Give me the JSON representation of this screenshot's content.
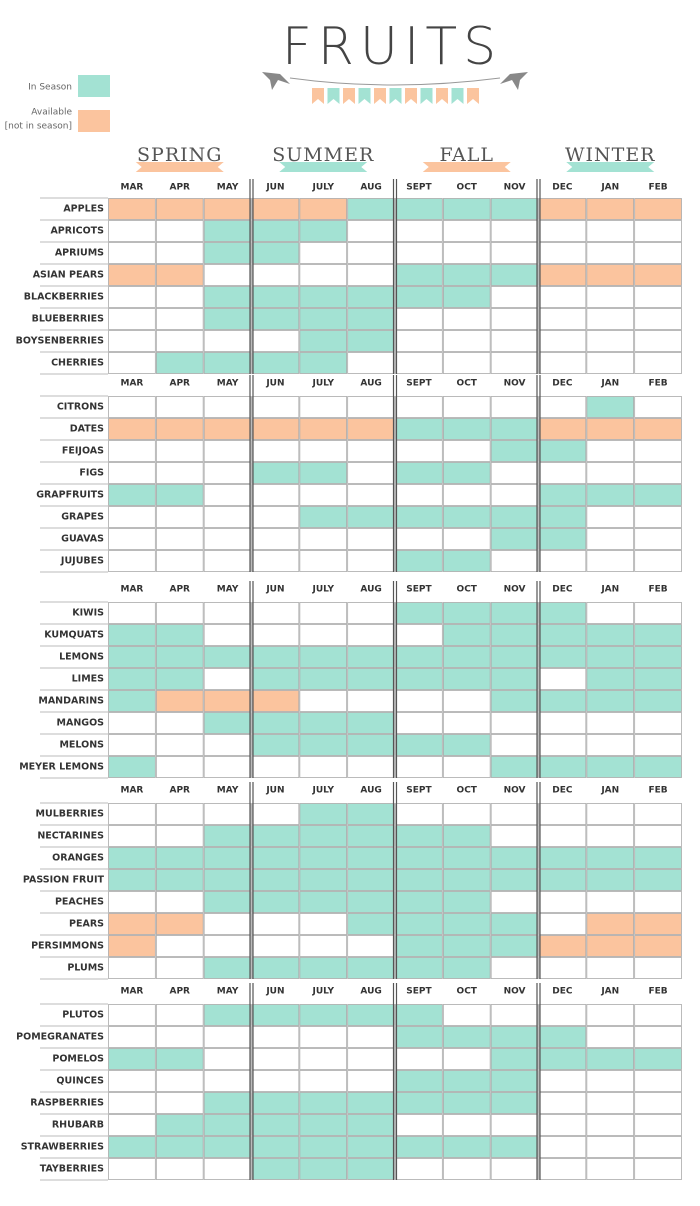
{
  "title": "FRUITS",
  "legend": {
    "in_season": "In Season",
    "available": "Available",
    "available_note": "[not in season]"
  },
  "seasons": [
    "SPRING",
    "SUMMER",
    "FALL",
    "WINTER"
  ],
  "months": [
    "MAR",
    "APR",
    "MAY",
    "JUN",
    "JULY",
    "AUG",
    "SEPT",
    "OCT",
    "NOV",
    "DEC",
    "JAN",
    "FEB"
  ],
  "groups": [
    {
      "fruits": [
        {
          "name": "APPLES",
          "in_season": [
            "AUG",
            "SEPT",
            "OCT",
            "NOV"
          ],
          "available": [
            "MAR",
            "APR",
            "MAY",
            "JUN",
            "JULY",
            "DEC",
            "JAN",
            "FEB"
          ]
        },
        {
          "name": "APRICOTS",
          "in_season": [
            "MAY",
            "JUN",
            "JULY"
          ],
          "available": []
        },
        {
          "name": "APRIUMS",
          "in_season": [
            "MAY",
            "JUN"
          ],
          "available": []
        },
        {
          "name": "ASIAN PEARS",
          "in_season": [
            "SEPT",
            "OCT",
            "NOV"
          ],
          "available": [
            "MAR",
            "APR",
            "DEC",
            "JAN",
            "FEB"
          ]
        },
        {
          "name": "BLACKBERRIES",
          "in_season": [
            "MAY",
            "JUN",
            "JULY",
            "AUG",
            "SEPT",
            "OCT"
          ],
          "available": []
        },
        {
          "name": "BLUEBERRIES",
          "in_season": [
            "MAY",
            "JUN",
            "JULY",
            "AUG"
          ],
          "available": []
        },
        {
          "name": "BOYSENBERRIES",
          "in_season": [
            "JULY",
            "AUG"
          ],
          "available": []
        },
        {
          "name": "CHERRIES",
          "in_season": [
            "APR",
            "MAY",
            "JUN",
            "JULY"
          ],
          "available": []
        }
      ]
    },
    {
      "fruits": [
        {
          "name": "CITRONS",
          "in_season": [
            "JAN"
          ],
          "available": []
        },
        {
          "name": "DATES",
          "in_season": [
            "SEPT",
            "OCT",
            "NOV"
          ],
          "available": [
            "MAR",
            "APR",
            "MAY",
            "JUN",
            "JULY",
            "AUG",
            "DEC",
            "JAN",
            "FEB"
          ]
        },
        {
          "name": "FEIJOAS",
          "in_season": [
            "NOV",
            "DEC"
          ],
          "available": []
        },
        {
          "name": "FIGS",
          "in_season": [
            "JUN",
            "JULY",
            "SEPT",
            "OCT"
          ],
          "available": []
        },
        {
          "name": "GRAPFRUITS",
          "in_season": [
            "MAR",
            "APR",
            "DEC",
            "JAN",
            "FEB"
          ],
          "available": []
        },
        {
          "name": "GRAPES",
          "in_season": [
            "JULY",
            "AUG",
            "SEPT",
            "OCT",
            "NOV",
            "DEC"
          ],
          "available": []
        },
        {
          "name": "GUAVAS",
          "in_season": [
            "NOV",
            "DEC"
          ],
          "available": []
        },
        {
          "name": "JUJUBES",
          "in_season": [
            "SEPT",
            "OCT"
          ],
          "available": []
        }
      ]
    },
    {
      "fruits": [
        {
          "name": "KIWIS",
          "in_season": [
            "SEPT",
            "OCT",
            "NOV",
            "DEC"
          ],
          "available": []
        },
        {
          "name": "KUMQUATS",
          "in_season": [
            "MAR",
            "APR",
            "OCT",
            "NOV",
            "DEC",
            "JAN",
            "FEB"
          ],
          "available": []
        },
        {
          "name": "LEMONS",
          "in_season": [
            "MAR",
            "APR",
            "MAY",
            "JUN",
            "JULY",
            "AUG",
            "SEPT",
            "OCT",
            "NOV",
            "DEC",
            "JAN",
            "FEB"
          ],
          "available": []
        },
        {
          "name": "LIMES",
          "in_season": [
            "MAR",
            "APR",
            "JUN",
            "JULY",
            "AUG",
            "SEPT",
            "OCT",
            "NOV",
            "JAN",
            "FEB"
          ],
          "available": []
        },
        {
          "name": "MANDARINS",
          "in_season": [
            "MAR",
            "NOV",
            "DEC",
            "JAN",
            "FEB"
          ],
          "available": [
            "APR",
            "MAY",
            "JUN"
          ]
        },
        {
          "name": "MANGOS",
          "in_season": [
            "MAY",
            "JUN",
            "JULY",
            "AUG"
          ],
          "available": []
        },
        {
          "name": "MELONS",
          "in_season": [
            "JUN",
            "JULY",
            "AUG",
            "SEPT",
            "OCT"
          ],
          "available": []
        },
        {
          "name": "MEYER LEMONS",
          "in_season": [
            "MAR",
            "NOV",
            "DEC",
            "JAN",
            "FEB"
          ],
          "available": []
        }
      ]
    },
    {
      "fruits": [
        {
          "name": "MULBERRIES",
          "in_season": [
            "JULY",
            "AUG"
          ],
          "available": []
        },
        {
          "name": "NECTARINES",
          "in_season": [
            "MAY",
            "JUN",
            "JULY",
            "AUG",
            "SEPT",
            "OCT"
          ],
          "available": []
        },
        {
          "name": "ORANGES",
          "in_season": [
            "MAR",
            "APR",
            "MAY",
            "JUN",
            "JULY",
            "AUG",
            "SEPT",
            "OCT",
            "NOV",
            "DEC",
            "JAN",
            "FEB"
          ],
          "available": []
        },
        {
          "name": "PASSION FRUIT",
          "in_season": [
            "MAR",
            "APR",
            "MAY",
            "JUN",
            "JULY",
            "AUG",
            "SEPT",
            "OCT",
            "NOV",
            "DEC",
            "JAN",
            "FEB"
          ],
          "available": []
        },
        {
          "name": "PEACHES",
          "in_season": [
            "MAY",
            "JUN",
            "JULY",
            "AUG",
            "SEPT",
            "OCT"
          ],
          "available": []
        },
        {
          "name": "PEARS",
          "in_season": [
            "AUG",
            "SEPT",
            "OCT",
            "NOV"
          ],
          "available": [
            "MAR",
            "APR",
            "JAN",
            "FEB"
          ]
        },
        {
          "name": "PERSIMMONS",
          "in_season": [
            "SEPT",
            "OCT",
            "NOV"
          ],
          "available": [
            "MAR",
            "DEC",
            "JAN",
            "FEB"
          ]
        },
        {
          "name": "PLUMS",
          "in_season": [
            "MAY",
            "JUN",
            "JULY",
            "AUG",
            "SEPT",
            "OCT"
          ],
          "available": []
        }
      ]
    },
    {
      "fruits": [
        {
          "name": "PLUTOS",
          "in_season": [
            "MAY",
            "JUN",
            "JULY",
            "AUG",
            "SEPT"
          ],
          "available": []
        },
        {
          "name": "POMEGRANATES",
          "in_season": [
            "SEPT",
            "OCT",
            "NOV",
            "DEC"
          ],
          "available": []
        },
        {
          "name": "POMELOS",
          "in_season": [
            "MAR",
            "APR",
            "NOV",
            "DEC",
            "JAN",
            "FEB"
          ],
          "available": []
        },
        {
          "name": "QUINCES",
          "in_season": [
            "SEPT",
            "OCT",
            "NOV"
          ],
          "available": []
        },
        {
          "name": "RASPBERRIES",
          "in_season": [
            "MAY",
            "JUN",
            "JULY",
            "AUG",
            "SEPT",
            "OCT",
            "NOV"
          ],
          "available": []
        },
        {
          "name": "RHUBARB",
          "in_season": [
            "APR",
            "MAY",
            "JUN",
            "JULY",
            "AUG"
          ],
          "available": []
        },
        {
          "name": "STRAWBERRIES",
          "in_season": [
            "MAR",
            "APR",
            "MAY",
            "JUN",
            "JULY",
            "AUG",
            "SEPT",
            "OCT",
            "NOV"
          ],
          "available": []
        },
        {
          "name": "TAYBERRIES",
          "in_season": [
            "JUN",
            "JULY",
            "AUG"
          ],
          "available": []
        }
      ]
    }
  ]
}
